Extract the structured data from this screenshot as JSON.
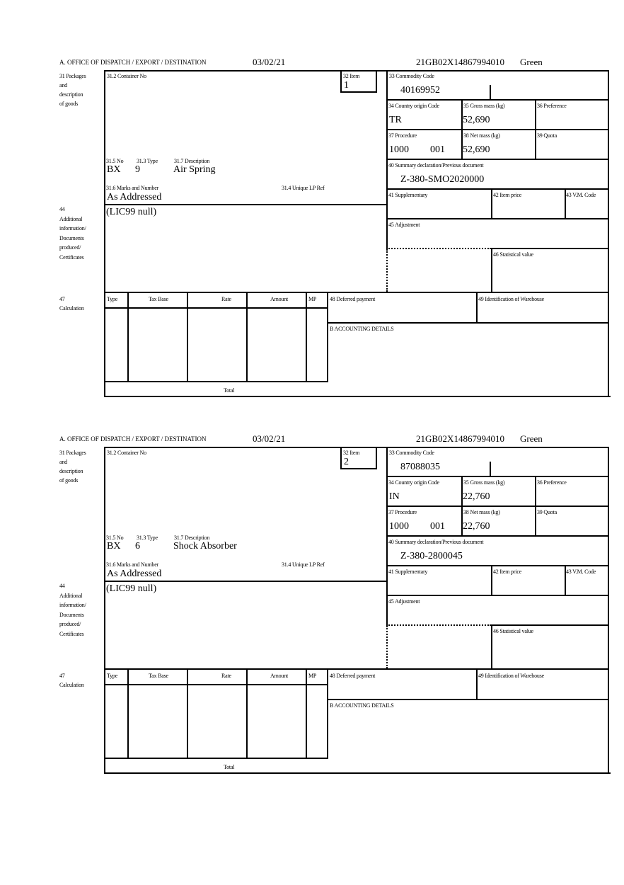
{
  "forms": [
    {
      "header": {
        "office": "A. OFFICE OF DISPATCH / EXPORT / DESTINATION",
        "date": "03/02/21",
        "reference": "21GB02X14867994010",
        "route": "Green"
      },
      "labels": {
        "packages": [
          "31 Packages",
          "and",
          "description",
          "of goods"
        ],
        "container_no": "31.2 Container No",
        "item": "32 Item",
        "no": "31.5 No",
        "type": "31.3 Type",
        "description": "31.7 Description",
        "marks": "31.6 Marks and Number",
        "unique_lp_ref": "31.4 Unique LP Ref",
        "additional_info": [
          "44",
          "Additional",
          "information/",
          "Documents",
          "produced/",
          "Certificates"
        ],
        "commodity_code": "33 Commodity Code",
        "country_origin": "34 Country origin Code",
        "gross_mass": "35 Gross mass (kg)",
        "preference": "36 Preference",
        "procedure": "37 Procedure",
        "net_mass": "38 Net mass (kg)",
        "quota": "39 Quota",
        "summary_decl": "40 Summary declaration/Previous document",
        "supplementary": "41 Supplementary",
        "item_price": "42 Item price",
        "vm_code": "43 V.M. Code",
        "adjustment": "45 Adjustment",
        "statistical_value": "46 Statistical value",
        "calculation": [
          "47",
          "Calculation"
        ],
        "calc_headers": [
          "Type",
          "Tax Base",
          "Rate",
          "Amount",
          "MP"
        ],
        "total": "Total",
        "deferred_payment": "48 Deferred payment",
        "warehouse_id": "49 Identification of Warehouse",
        "accounting": "B ACCOUNTING DETAILS"
      },
      "values": {
        "item": "1",
        "no": "BX",
        "type": "9",
        "description": "Air Spring",
        "marks": "As Addressed",
        "additional_info": "(LIC99 null)",
        "commodity_code": "40169952",
        "country_origin": "TR",
        "gross_mass": "52,690",
        "procedure": "1000",
        "procedure_ext": "001",
        "net_mass": "52,690",
        "summary_decl": "Z-380-SMO2020000"
      }
    },
    {
      "header": {
        "office": "A. OFFICE OF DISPATCH / EXPORT / DESTINATION",
        "date": "03/02/21",
        "reference": "21GB02X14867994010",
        "route": "Green"
      },
      "labels": {
        "packages": [
          "31 Packages",
          "and",
          "description",
          "of goods"
        ],
        "container_no": "31.2 Container No",
        "item": "32 Item",
        "no": "31.5 No",
        "type": "31.3 Type",
        "description": "31.7 Description",
        "marks": "31.6 Marks and Number",
        "unique_lp_ref": "31.4 Unique LP Ref",
        "additional_info": [
          "44",
          "Additional",
          "information/",
          "Documents",
          "produced/",
          "Certificates"
        ],
        "commodity_code": "33 Commodity Code",
        "country_origin": "34 Country origin Code",
        "gross_mass": "35 Gross mass (kg)",
        "preference": "36 Preference",
        "procedure": "37 Procedure",
        "net_mass": "38 Net mass (kg)",
        "quota": "39 Quota",
        "summary_decl": "40 Summary declaration/Previous document",
        "supplementary": "41 Supplementary",
        "item_price": "42 Item price",
        "vm_code": "43 V.M. Code",
        "adjustment": "45 Adjustment",
        "statistical_value": "46 Statistical value",
        "calculation": [
          "47",
          "Calculation"
        ],
        "calc_headers": [
          "Type",
          "Tax Base",
          "Rate",
          "Amount",
          "MP"
        ],
        "total": "Total",
        "deferred_payment": "48 Deferred payment",
        "warehouse_id": "49 Identification of Warehouse",
        "accounting": "B ACCOUNTING DETAILS"
      },
      "values": {
        "item": "2",
        "no": "BX",
        "type": "6",
        "description": "Shock Absorber",
        "marks": "As Addressed",
        "additional_info": "(LIC99 null)",
        "commodity_code": "87088035",
        "country_origin": "IN",
        "gross_mass": "22,760",
        "procedure": "1000",
        "procedure_ext": "001",
        "net_mass": "22,760",
        "summary_decl": "Z-380-2800045"
      }
    }
  ]
}
